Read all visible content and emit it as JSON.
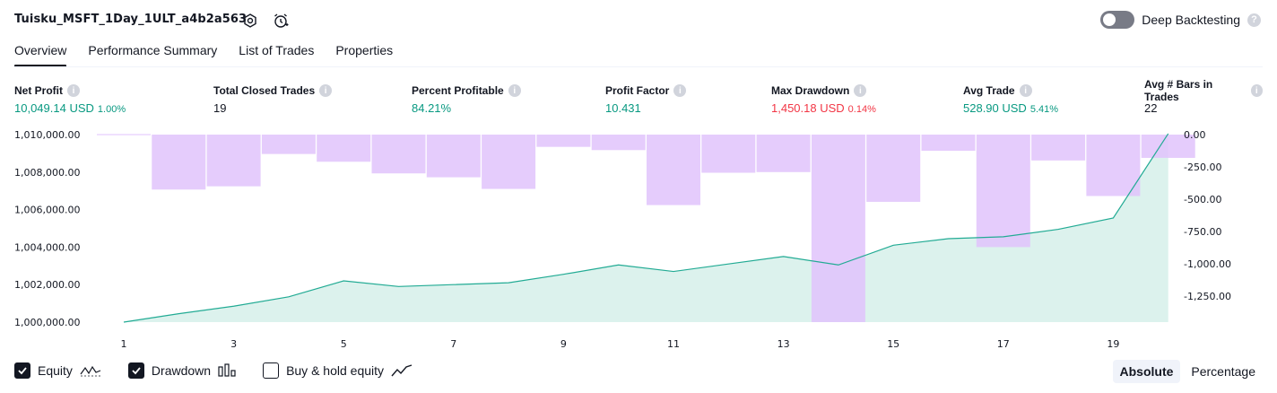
{
  "header": {
    "title": "Tuisku_MSFT_1Day_1ULT_a4b2a563",
    "settings_icon": "gear-icon",
    "alert_icon": "alarm-clock-icon",
    "toggle_label": "Deep Backtesting",
    "toggle_on": false
  },
  "tabs": [
    {
      "label": "Overview",
      "active": true
    },
    {
      "label": "Performance Summary",
      "active": false
    },
    {
      "label": "List of Trades",
      "active": false
    },
    {
      "label": "Properties",
      "active": false
    }
  ],
  "metrics": {
    "net_profit": {
      "label": "Net Profit",
      "value": "10,049.14 USD",
      "pct": "1.00%"
    },
    "total_closed_trades": {
      "label": "Total Closed Trades",
      "value": "19"
    },
    "percent_profitable": {
      "label": "Percent Profitable",
      "value": "84.21%"
    },
    "profit_factor": {
      "label": "Profit Factor",
      "value": "10.431"
    },
    "max_drawdown": {
      "label": "Max Drawdown",
      "value": "1,450.18 USD",
      "pct": "0.14%"
    },
    "avg_trade": {
      "label": "Avg Trade",
      "value": "528.90 USD",
      "pct": "5.41%"
    },
    "avg_bars": {
      "label": "Avg # Bars in Trades",
      "value": "22"
    }
  },
  "colors": {
    "positive": "#089981",
    "negative": "#f23645",
    "equity_line": "#22ab94",
    "equity_fill": "#d6f0ea",
    "drawdown_bar": "#e1c3fc"
  },
  "chart_data": {
    "type": "area",
    "x": [
      1,
      2,
      3,
      4,
      5,
      6,
      7,
      8,
      9,
      10,
      11,
      12,
      13,
      14,
      15,
      16,
      17,
      18,
      19,
      20
    ],
    "xticks": [
      "1",
      "3",
      "5",
      "7",
      "9",
      "11",
      "13",
      "15",
      "17",
      "19"
    ],
    "series": [
      {
        "name": "Equity",
        "axis": "left",
        "values": [
          1000000,
          1000450,
          1000850,
          1001350,
          1002200,
          1001900,
          1002000,
          1002100,
          1002550,
          1003050,
          1002700,
          1003100,
          1003500,
          1003050,
          1004100,
          1004450,
          1004550,
          1004950,
          1005550,
          1010049
        ]
      },
      {
        "name": "Drawdown",
        "axis": "right",
        "values": [
          0,
          -425,
          -400,
          -150,
          -210,
          -300,
          -330,
          -420,
          -95,
          -120,
          -545,
          -295,
          -290,
          -1450,
          -520,
          -125,
          -870,
          -200,
          -475,
          -180
        ]
      }
    ],
    "left_axis": {
      "ticks": [
        "1,010,000.00",
        "1,008,000.00",
        "1,006,000.00",
        "1,004,000.00",
        "1,002,000.00",
        "1,000,000.00"
      ],
      "range": [
        1000000,
        1010000
      ]
    },
    "right_axis": {
      "ticks": [
        "0.00",
        "-250.00",
        "-500.00",
        "-750.00",
        "-1,000.00",
        "-1,250.00"
      ],
      "range": [
        -1450,
        0
      ]
    }
  },
  "legend": [
    {
      "label": "Equity",
      "checked": true,
      "icon": "equity-line-icon"
    },
    {
      "label": "Drawdown",
      "checked": true,
      "icon": "drawdown-bars-icon"
    },
    {
      "label": "Buy & hold equity",
      "checked": false,
      "icon": "buy-hold-line-icon"
    }
  ],
  "scale_toggle": {
    "absolute": "Absolute",
    "percentage": "Percentage",
    "selected": "Absolute"
  }
}
